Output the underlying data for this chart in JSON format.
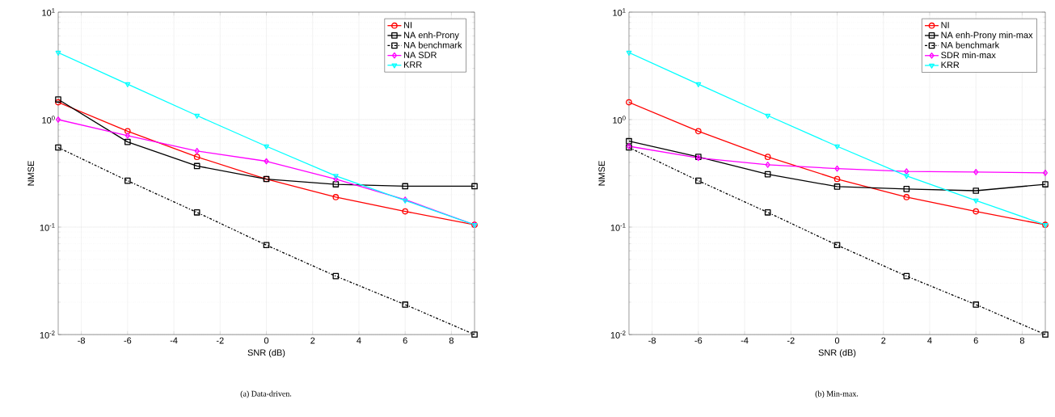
{
  "chart_data": [
    {
      "type": "line",
      "xlabel": "SNR (dB)",
      "ylabel": "NMSE",
      "log": "y",
      "grid": true,
      "legend": "top right",
      "x": [
        -9,
        -6,
        -3,
        0,
        3,
        6,
        9
      ],
      "xlim": [
        -9,
        9
      ],
      "xticks": [
        -8,
        -6,
        -4,
        -2,
        0,
        2,
        4,
        6,
        8
      ],
      "ylim": [
        0.01,
        10
      ],
      "yticks": [
        {
          "value": 0.01,
          "label": "10$^{-2}$"
        },
        {
          "value": 0.1,
          "label": "10$^{-1}$"
        },
        {
          "value": 1,
          "label": "10$^{0}$"
        },
        {
          "value": 10,
          "label": "10$^{1}$"
        }
      ],
      "annotations": [
        "(a)  Data-driven."
      ],
      "series": [
        {
          "name": "NI",
          "color": "#ff0000",
          "marker": "circle",
          "line_style": "solid",
          "values": [
            1.45,
            0.78,
            0.45,
            0.28,
            0.19,
            0.14,
            0.105
          ]
        },
        {
          "name": "NA enh-Prony",
          "color": "#000000",
          "marker": "square",
          "line_style": "solid",
          "values": [
            1.54,
            0.62,
            0.37,
            0.28,
            0.25,
            0.24,
            0.24
          ]
        },
        {
          "name": "NA benchmark",
          "color": "#000000",
          "marker": "square",
          "line_style": "dashed",
          "values": [
            0.55,
            0.27,
            0.137,
            0.068,
            0.035,
            0.019,
            0.01
          ]
        },
        {
          "name": "NA SDR",
          "color": "#ff00ff",
          "marker": "diamond",
          "line_style": "solid",
          "values": [
            1.0,
            0.71,
            0.51,
            0.41,
            0.28,
            0.18,
            0.105
          ]
        },
        {
          "name": "KRR",
          "color": "#00ffff",
          "marker": "triangle",
          "line_style": "solid",
          "values": [
            4.2,
            2.14,
            1.09,
            0.565,
            0.3,
            0.177,
            0.105
          ]
        }
      ]
    },
    {
      "type": "line",
      "xlabel": "SNR (dB)",
      "ylabel": "NMSE",
      "log": "y",
      "grid": true,
      "legend": "top right",
      "x": [
        -9,
        -6,
        -3,
        0,
        3,
        6,
        9
      ],
      "xlim": [
        -9,
        9
      ],
      "xticks": [
        -8,
        -6,
        -4,
        -2,
        0,
        2,
        4,
        6,
        8
      ],
      "ylim": [
        0.01,
        10
      ],
      "yticks": [
        {
          "value": 0.01,
          "label": "10$^{-2}$"
        },
        {
          "value": 0.1,
          "label": "10$^{-1}$"
        },
        {
          "value": 1,
          "label": "10$^{0}$"
        },
        {
          "value": 10,
          "label": "10$^{1}$"
        }
      ],
      "annotations": [
        "(b)  Min-max."
      ],
      "series": [
        {
          "name": "NI",
          "color": "#ff0000",
          "marker": "circle",
          "line_style": "solid",
          "values": [
            1.45,
            0.78,
            0.45,
            0.28,
            0.19,
            0.14,
            0.105
          ]
        },
        {
          "name": "NA enh-Prony min-max",
          "color": "#000000",
          "marker": "square",
          "line_style": "solid",
          "values": [
            0.63,
            0.45,
            0.31,
            0.238,
            0.226,
            0.218,
            0.25
          ]
        },
        {
          "name": "NA benchmark",
          "color": "#000000",
          "marker": "square",
          "line_style": "dashed",
          "values": [
            0.55,
            0.27,
            0.137,
            0.068,
            0.035,
            0.019,
            0.01
          ]
        },
        {
          "name": "SDR min-max",
          "color": "#ff00ff",
          "marker": "diamond",
          "line_style": "solid",
          "values": [
            0.565,
            0.44,
            0.38,
            0.35,
            0.33,
            0.325,
            0.32
          ]
        },
        {
          "name": "KRR",
          "color": "#00ffff",
          "marker": "triangle",
          "line_style": "solid",
          "values": [
            4.2,
            2.14,
            1.09,
            0.565,
            0.3,
            0.177,
            0.105
          ]
        }
      ]
    }
  ]
}
